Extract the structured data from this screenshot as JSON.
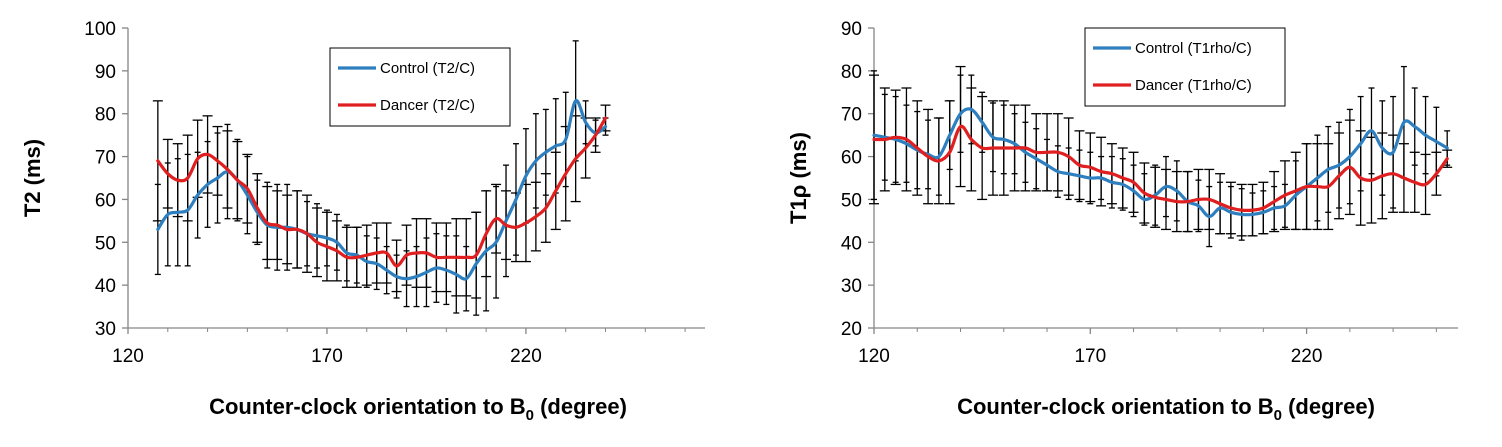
{
  "chart_data": [
    {
      "type": "line",
      "title": "",
      "ylabel": "T2 (ms)",
      "xlabel": "Counter-clock orientation to B",
      "xlabel_sub": "0",
      "xlabel_suffix": " (degree)",
      "xlim": [
        120,
        265
      ],
      "ylim": [
        30,
        100
      ],
      "xticks": [
        120,
        170,
        220
      ],
      "yticks": [
        30,
        40,
        50,
        60,
        70,
        80,
        90,
        100
      ],
      "grid": false,
      "legend_position": "top-center",
      "x": [
        127.5,
        130,
        132.5,
        135,
        137.5,
        140,
        142.5,
        145,
        147.5,
        150,
        152.5,
        155,
        157.5,
        160,
        162.5,
        165,
        167.5,
        170,
        172.5,
        175,
        177.5,
        180,
        182.5,
        185,
        187.5,
        190,
        192.5,
        195,
        197.5,
        200,
        202.5,
        205,
        207.5,
        210,
        212.5,
        215,
        217.5,
        220,
        222.5,
        225,
        227.5,
        230,
        232.5,
        235,
        237.5,
        240
      ],
      "series": [
        {
          "name": "Control (T2/C)",
          "color": "#2e7fbf",
          "values": [
            53,
            56.5,
            57,
            57.5,
            61,
            63.5,
            65,
            66.5,
            64.5,
            61,
            57,
            54,
            53.5,
            53.5,
            53,
            52,
            51.5,
            51,
            50,
            47.5,
            47,
            45.5,
            45,
            43.5,
            42,
            41.5,
            42,
            43,
            44,
            43.5,
            42.5,
            41.5,
            45,
            48,
            50,
            55,
            60,
            65.5,
            69,
            71,
            72.5,
            74,
            83,
            78,
            75.5,
            77
          ],
          "errors": [
            10.5,
            12,
            12.5,
            13,
            10,
            10,
            10.5,
            11,
            9.5,
            9,
            7.5,
            10,
            10,
            10,
            9,
            7.5,
            7.5,
            6.5,
            6.5,
            6.5,
            6.5,
            6,
            6,
            5.5,
            5,
            6.5,
            7,
            8,
            8,
            8,
            9,
            7.5,
            12,
            14,
            13,
            13,
            13,
            11,
            11,
            10,
            11,
            11,
            14,
            5,
            3,
            2
          ],
          "err_cap_width": 6
        },
        {
          "name": "Dancer (T2/C)",
          "color": "#e02020",
          "values": [
            69,
            66,
            64.5,
            65,
            69.5,
            70.5,
            69,
            67,
            64.5,
            62.5,
            58,
            54.5,
            54,
            53,
            53,
            52,
            50,
            49,
            48,
            46.5,
            46.5,
            47,
            47.5,
            47.5,
            44.5,
            47,
            47.5,
            47.5,
            46.5,
            46.5,
            46.5,
            46.5,
            47,
            52,
            55.5,
            54,
            53.5,
            54.5,
            56,
            58,
            62,
            66,
            69.5,
            72,
            75,
            79
          ],
          "errors": [
            14,
            8,
            8.5,
            10,
            9,
            9,
            8,
            9,
            9,
            8,
            8,
            8.5,
            8,
            8,
            9,
            9,
            8,
            8,
            7,
            7,
            7,
            7,
            7,
            7,
            6,
            7,
            8,
            8,
            8,
            8,
            9,
            9,
            10,
            10,
            8,
            8,
            8,
            9,
            8,
            8,
            9,
            11,
            10,
            7,
            4,
            3
          ],
          "err_cap_width": 10
        }
      ]
    },
    {
      "type": "line",
      "title": "",
      "ylabel": "T1ρ (ms)",
      "xlabel": "Counter-clock orientation to B",
      "xlabel_sub": "0",
      "xlabel_suffix": " (degree)",
      "xlim": [
        120,
        255
      ],
      "ylim": [
        20,
        90
      ],
      "xticks": [
        120,
        170,
        220
      ],
      "yticks": [
        20,
        30,
        40,
        50,
        60,
        70,
        80,
        90
      ],
      "grid": false,
      "legend_position": "top-center",
      "x": [
        120,
        122.5,
        125,
        127.5,
        130,
        132.5,
        135,
        137.5,
        140,
        142.5,
        145,
        147.5,
        150,
        152.5,
        155,
        157.5,
        160,
        162.5,
        165,
        167.5,
        170,
        172.5,
        175,
        177.5,
        180,
        182.5,
        185,
        187.5,
        190,
        192.5,
        195,
        197.5,
        200,
        202.5,
        205,
        207.5,
        210,
        212.5,
        215,
        217.5,
        220,
        222.5,
        225,
        227.5,
        230,
        232.5,
        235,
        237.5,
        240,
        242.5,
        245,
        247.5,
        250,
        252.5
      ],
      "series": [
        {
          "name": "Control (T1rho/C)",
          "color": "#2e7fbf",
          "values": [
            65,
            64.5,
            64,
            63,
            61.5,
            60.5,
            60,
            65,
            70,
            71,
            68,
            64.5,
            64,
            63,
            61,
            59.5,
            58,
            56.5,
            56,
            55.5,
            55,
            55,
            54,
            53.5,
            52,
            50,
            51,
            53,
            52,
            49.5,
            48.5,
            46,
            48,
            47,
            46.5,
            46.5,
            47,
            48,
            48.5,
            51,
            53,
            55,
            57,
            58,
            60,
            63,
            66,
            62,
            61,
            68,
            67,
            65,
            63.5,
            62
          ],
          "errors": [
            15,
            10,
            10,
            9,
            9,
            8,
            9,
            8,
            9,
            8,
            7,
            8,
            8,
            7,
            7,
            7,
            6,
            6,
            6,
            6,
            6,
            5,
            6,
            6,
            6,
            6,
            7,
            7,
            7,
            7,
            6,
            7,
            6,
            6,
            6,
            5,
            5,
            5,
            5,
            8,
            10,
            10,
            10,
            10,
            11,
            11,
            10,
            11,
            13,
            13,
            9,
            9,
            8,
            4
          ],
          "err_cap_width": 6
        },
        {
          "name": "Dancer (T1rho/C)",
          "color": "#e02020",
          "values": [
            64,
            64,
            64.5,
            64,
            62,
            60,
            59,
            61,
            67,
            64,
            62,
            62,
            62,
            62,
            62,
            61,
            61,
            61,
            60,
            58,
            57.5,
            56.5,
            56,
            55,
            54,
            51.5,
            50.5,
            50,
            49.5,
            49.5,
            50,
            50,
            49,
            48,
            47.5,
            47.5,
            48,
            49.5,
            51,
            52,
            53,
            53,
            53,
            55.5,
            57.5,
            55,
            54.5,
            55.5,
            56,
            55,
            54,
            53.5,
            56,
            59.5
          ],
          "errors": [
            15,
            12,
            11,
            12,
            11,
            11,
            10,
            12,
            14,
            12,
            12,
            11,
            11,
            10,
            10,
            9,
            9,
            9,
            9,
            8,
            8,
            8,
            7,
            7,
            7,
            7,
            7,
            7,
            7,
            7,
            7,
            7,
            7,
            6,
            6,
            6,
            6,
            7,
            8,
            9,
            10,
            10,
            10,
            10,
            11,
            11,
            10,
            10,
            9,
            8,
            7,
            7,
            5,
            2
          ],
          "err_cap_width": 10
        }
      ]
    }
  ]
}
